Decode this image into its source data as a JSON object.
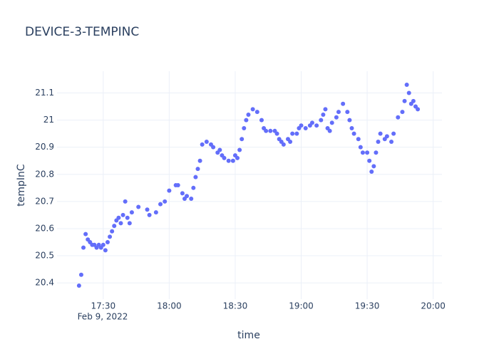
{
  "chart_data": {
    "type": "scatter",
    "title": "DEVICE-3-TEMPINC",
    "x_label": "time",
    "y_label": "tempInC",
    "x_date_label": "Feb 9, 2022",
    "series": [
      {
        "name": "tempInC",
        "color": "#636efa",
        "x": [
          "2022-02-09 17:19",
          "2022-02-09 17:20",
          "2022-02-09 17:21",
          "2022-02-09 17:22",
          "2022-02-09 17:23",
          "2022-02-09 17:24",
          "2022-02-09 17:25",
          "2022-02-09 17:26",
          "2022-02-09 17:27",
          "2022-02-09 17:28",
          "2022-02-09 17:29",
          "2022-02-09 17:30",
          "2022-02-09 17:31",
          "2022-02-09 17:32",
          "2022-02-09 17:33",
          "2022-02-09 17:34",
          "2022-02-09 17:35",
          "2022-02-09 17:36",
          "2022-02-09 17:37",
          "2022-02-09 17:38",
          "2022-02-09 17:39",
          "2022-02-09 17:40",
          "2022-02-09 17:41",
          "2022-02-09 17:42",
          "2022-02-09 17:43",
          "2022-02-09 17:46",
          "2022-02-09 17:50",
          "2022-02-09 17:51",
          "2022-02-09 17:54",
          "2022-02-09 17:56",
          "2022-02-09 17:58",
          "2022-02-09 18:00",
          "2022-02-09 18:03",
          "2022-02-09 18:04",
          "2022-02-09 18:06",
          "2022-02-09 18:07",
          "2022-02-09 18:08",
          "2022-02-09 18:10",
          "2022-02-09 18:11",
          "2022-02-09 18:12",
          "2022-02-09 18:13",
          "2022-02-09 18:14",
          "2022-02-09 18:15",
          "2022-02-09 18:17",
          "2022-02-09 18:19",
          "2022-02-09 18:20",
          "2022-02-09 18:22",
          "2022-02-09 18:23",
          "2022-02-09 18:24",
          "2022-02-09 18:25",
          "2022-02-09 18:27",
          "2022-02-09 18:29",
          "2022-02-09 18:30",
          "2022-02-09 18:31",
          "2022-02-09 18:32",
          "2022-02-09 18:33",
          "2022-02-09 18:34",
          "2022-02-09 18:35",
          "2022-02-09 18:36",
          "2022-02-09 18:38",
          "2022-02-09 18:40",
          "2022-02-09 18:42",
          "2022-02-09 18:43",
          "2022-02-09 18:44",
          "2022-02-09 18:46",
          "2022-02-09 18:48",
          "2022-02-09 18:49",
          "2022-02-09 18:50",
          "2022-02-09 18:51",
          "2022-02-09 18:52",
          "2022-02-09 18:54",
          "2022-02-09 18:55",
          "2022-02-09 18:56",
          "2022-02-09 18:58",
          "2022-02-09 18:59",
          "2022-02-09 19:00",
          "2022-02-09 19:02",
          "2022-02-09 19:04",
          "2022-02-09 19:05",
          "2022-02-09 19:07",
          "2022-02-09 19:09",
          "2022-02-09 19:10",
          "2022-02-09 19:11",
          "2022-02-09 19:12",
          "2022-02-09 19:13",
          "2022-02-09 19:14",
          "2022-02-09 19:16",
          "2022-02-09 19:17",
          "2022-02-09 19:19",
          "2022-02-09 19:21",
          "2022-02-09 19:22",
          "2022-02-09 19:23",
          "2022-02-09 19:24",
          "2022-02-09 19:26",
          "2022-02-09 19:27",
          "2022-02-09 19:28",
          "2022-02-09 19:30",
          "2022-02-09 19:31",
          "2022-02-09 19:32",
          "2022-02-09 19:33",
          "2022-02-09 19:34",
          "2022-02-09 19:35",
          "2022-02-09 19:36",
          "2022-02-09 19:38",
          "2022-02-09 19:39",
          "2022-02-09 19:41",
          "2022-02-09 19:42",
          "2022-02-09 19:44",
          "2022-02-09 19:46",
          "2022-02-09 19:47",
          "2022-02-09 19:48",
          "2022-02-09 19:49",
          "2022-02-09 19:50",
          "2022-02-09 19:51",
          "2022-02-09 19:52",
          "2022-02-09 19:53"
        ],
        "values": [
          20.39,
          20.43,
          20.53,
          20.58,
          20.56,
          20.55,
          20.54,
          20.54,
          20.53,
          20.54,
          20.53,
          20.54,
          20.52,
          20.55,
          20.57,
          20.59,
          20.61,
          20.63,
          20.64,
          20.62,
          20.65,
          20.7,
          20.64,
          20.62,
          20.66,
          20.68,
          20.67,
          20.65,
          20.66,
          20.69,
          20.7,
          20.74,
          20.76,
          20.76,
          20.73,
          20.71,
          20.72,
          20.71,
          20.75,
          20.79,
          20.82,
          20.85,
          20.91,
          20.92,
          20.91,
          20.9,
          20.88,
          20.89,
          20.87,
          20.86,
          20.85,
          20.85,
          20.87,
          20.86,
          20.89,
          20.93,
          20.97,
          21.0,
          21.02,
          21.04,
          21.03,
          21.0,
          20.97,
          20.96,
          20.96,
          20.96,
          20.95,
          20.93,
          20.92,
          20.91,
          20.93,
          20.92,
          20.95,
          20.95,
          20.97,
          20.98,
          20.97,
          20.98,
          20.99,
          20.98,
          21.0,
          21.02,
          21.04,
          20.97,
          20.96,
          20.99,
          21.01,
          21.03,
          21.06,
          21.03,
          21.0,
          20.97,
          20.95,
          20.93,
          20.9,
          20.88,
          20.88,
          20.85,
          20.81,
          20.83,
          20.88,
          20.92,
          20.95,
          20.93,
          20.94,
          20.92,
          20.95,
          21.01,
          21.03,
          21.07,
          21.13,
          21.1,
          21.06,
          21.07,
          21.05,
          21.04
        ]
      }
    ],
    "xlim": [
      "2022-02-09 17:09",
      "2022-02-09 20:04"
    ],
    "xticks": [
      {
        "value": "2022-02-09 17:30",
        "label": "17:30"
      },
      {
        "value": "2022-02-09 18:00",
        "label": "18:00"
      },
      {
        "value": "2022-02-09 18:30",
        "label": "18:30"
      },
      {
        "value": "2022-02-09 19:00",
        "label": "19:00"
      },
      {
        "value": "2022-02-09 19:30",
        "label": "19:30"
      },
      {
        "value": "2022-02-09 20:00",
        "label": "20:00"
      }
    ],
    "ylim": [
      20.34,
      21.18
    ],
    "yticks": [
      20.4,
      20.5,
      20.6,
      20.7,
      20.8,
      20.9,
      21,
      21.1
    ],
    "grid": true
  }
}
